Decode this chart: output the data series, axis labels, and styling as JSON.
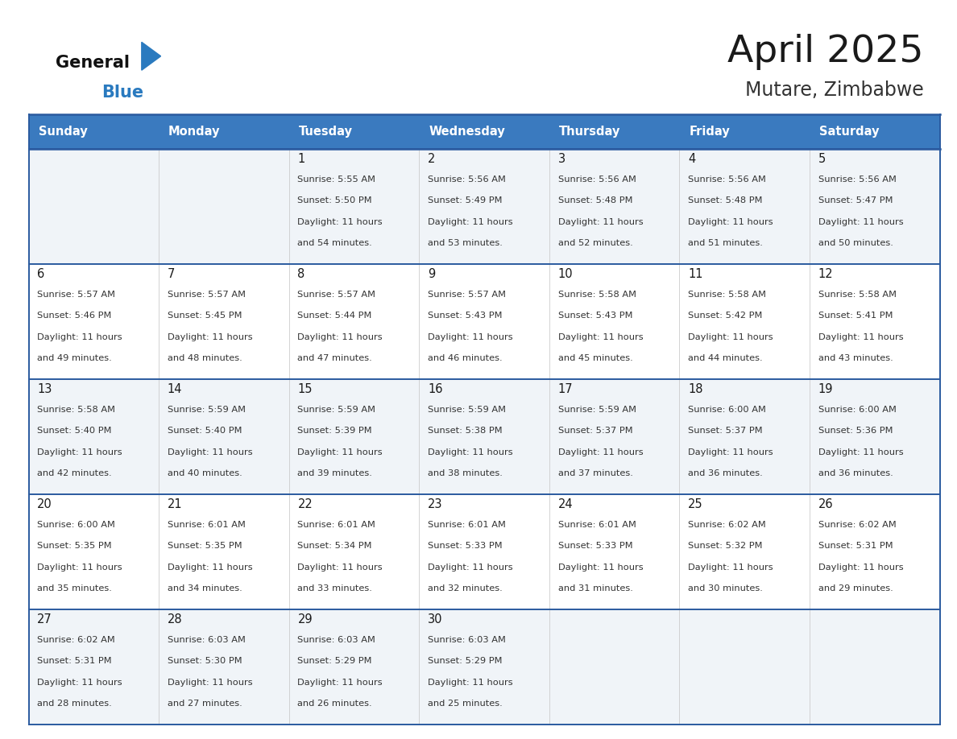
{
  "title": "April 2025",
  "subtitle": "Mutare, Zimbabwe",
  "header_bg_color": "#3a7abf",
  "header_text_color": "#ffffff",
  "border_color": "#2a5a9f",
  "text_color": "#333333",
  "days_of_week": [
    "Sunday",
    "Monday",
    "Tuesday",
    "Wednesday",
    "Thursday",
    "Friday",
    "Saturday"
  ],
  "calendar_data": [
    [
      null,
      null,
      {
        "day": 1,
        "sunrise": "5:55 AM",
        "sunset": "5:50 PM",
        "daylight": "11 hours and 54 minutes."
      },
      {
        "day": 2,
        "sunrise": "5:56 AM",
        "sunset": "5:49 PM",
        "daylight": "11 hours and 53 minutes."
      },
      {
        "day": 3,
        "sunrise": "5:56 AM",
        "sunset": "5:48 PM",
        "daylight": "11 hours and 52 minutes."
      },
      {
        "day": 4,
        "sunrise": "5:56 AM",
        "sunset": "5:48 PM",
        "daylight": "11 hours and 51 minutes."
      },
      {
        "day": 5,
        "sunrise": "5:56 AM",
        "sunset": "5:47 PM",
        "daylight": "11 hours and 50 minutes."
      }
    ],
    [
      {
        "day": 6,
        "sunrise": "5:57 AM",
        "sunset": "5:46 PM",
        "daylight": "11 hours and 49 minutes."
      },
      {
        "day": 7,
        "sunrise": "5:57 AM",
        "sunset": "5:45 PM",
        "daylight": "11 hours and 48 minutes."
      },
      {
        "day": 8,
        "sunrise": "5:57 AM",
        "sunset": "5:44 PM",
        "daylight": "11 hours and 47 minutes."
      },
      {
        "day": 9,
        "sunrise": "5:57 AM",
        "sunset": "5:43 PM",
        "daylight": "11 hours and 46 minutes."
      },
      {
        "day": 10,
        "sunrise": "5:58 AM",
        "sunset": "5:43 PM",
        "daylight": "11 hours and 45 minutes."
      },
      {
        "day": 11,
        "sunrise": "5:58 AM",
        "sunset": "5:42 PM",
        "daylight": "11 hours and 44 minutes."
      },
      {
        "day": 12,
        "sunrise": "5:58 AM",
        "sunset": "5:41 PM",
        "daylight": "11 hours and 43 minutes."
      }
    ],
    [
      {
        "day": 13,
        "sunrise": "5:58 AM",
        "sunset": "5:40 PM",
        "daylight": "11 hours and 42 minutes."
      },
      {
        "day": 14,
        "sunrise": "5:59 AM",
        "sunset": "5:40 PM",
        "daylight": "11 hours and 40 minutes."
      },
      {
        "day": 15,
        "sunrise": "5:59 AM",
        "sunset": "5:39 PM",
        "daylight": "11 hours and 39 minutes."
      },
      {
        "day": 16,
        "sunrise": "5:59 AM",
        "sunset": "5:38 PM",
        "daylight": "11 hours and 38 minutes."
      },
      {
        "day": 17,
        "sunrise": "5:59 AM",
        "sunset": "5:37 PM",
        "daylight": "11 hours and 37 minutes."
      },
      {
        "day": 18,
        "sunrise": "6:00 AM",
        "sunset": "5:37 PM",
        "daylight": "11 hours and 36 minutes."
      },
      {
        "day": 19,
        "sunrise": "6:00 AM",
        "sunset": "5:36 PM",
        "daylight": "11 hours and 36 minutes."
      }
    ],
    [
      {
        "day": 20,
        "sunrise": "6:00 AM",
        "sunset": "5:35 PM",
        "daylight": "11 hours and 35 minutes."
      },
      {
        "day": 21,
        "sunrise": "6:01 AM",
        "sunset": "5:35 PM",
        "daylight": "11 hours and 34 minutes."
      },
      {
        "day": 22,
        "sunrise": "6:01 AM",
        "sunset": "5:34 PM",
        "daylight": "11 hours and 33 minutes."
      },
      {
        "day": 23,
        "sunrise": "6:01 AM",
        "sunset": "5:33 PM",
        "daylight": "11 hours and 32 minutes."
      },
      {
        "day": 24,
        "sunrise": "6:01 AM",
        "sunset": "5:33 PM",
        "daylight": "11 hours and 31 minutes."
      },
      {
        "day": 25,
        "sunrise": "6:02 AM",
        "sunset": "5:32 PM",
        "daylight": "11 hours and 30 minutes."
      },
      {
        "day": 26,
        "sunrise": "6:02 AM",
        "sunset": "5:31 PM",
        "daylight": "11 hours and 29 minutes."
      }
    ],
    [
      {
        "day": 27,
        "sunrise": "6:02 AM",
        "sunset": "5:31 PM",
        "daylight": "11 hours and 28 minutes."
      },
      {
        "day": 28,
        "sunrise": "6:03 AM",
        "sunset": "5:30 PM",
        "daylight": "11 hours and 27 minutes."
      },
      {
        "day": 29,
        "sunrise": "6:03 AM",
        "sunset": "5:29 PM",
        "daylight": "11 hours and 26 minutes."
      },
      {
        "day": 30,
        "sunrise": "6:03 AM",
        "sunset": "5:29 PM",
        "daylight": "11 hours and 25 minutes."
      },
      null,
      null,
      null
    ]
  ]
}
